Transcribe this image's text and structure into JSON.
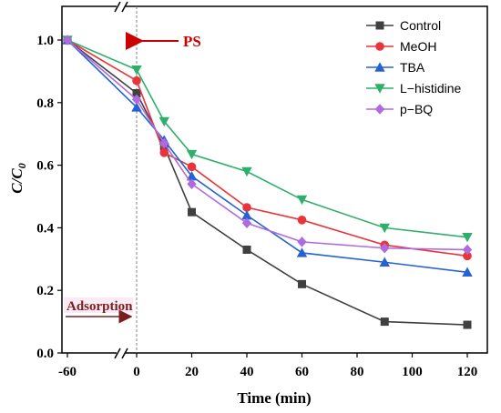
{
  "chart_data": {
    "type": "line",
    "xlabel": "Time (min)",
    "ylabel": "C/C",
    "ylabel_subscript": "0",
    "x_ticks": [
      -60,
      0,
      20,
      40,
      60,
      80,
      100,
      120
    ],
    "y_ticks": [
      0.0,
      0.2,
      0.4,
      0.6,
      0.8,
      1.0
    ],
    "ylim": [
      0.0,
      1.1
    ],
    "axis_break": "between -60 and 0",
    "grid": false,
    "legend_position": "top-right",
    "annotations": [
      {
        "text": "PS",
        "color": "#cc0000",
        "x": 0,
        "y": 1.0
      },
      {
        "text": "Adsorption",
        "color": "#7a1f1f",
        "x": -60,
        "y": 0.12
      }
    ],
    "series": [
      {
        "name": "Control",
        "color": "#404040",
        "marker": "square",
        "x": [
          -60,
          0,
          10,
          20,
          40,
          60,
          90,
          120
        ],
        "y": [
          1.0,
          0.83,
          0.66,
          0.45,
          0.33,
          0.22,
          0.1,
          0.09
        ]
      },
      {
        "name": "MeOH",
        "color": "#e8343a",
        "marker": "circle",
        "x": [
          -60,
          0,
          10,
          20,
          40,
          60,
          90,
          120
        ],
        "y": [
          1.0,
          0.87,
          0.64,
          0.595,
          0.465,
          0.425,
          0.345,
          0.31
        ]
      },
      {
        "name": "TBA",
        "color": "#2563d4",
        "marker": "triangle-up",
        "x": [
          -60,
          0,
          10,
          20,
          40,
          60,
          90,
          120
        ],
        "y": [
          1.0,
          0.785,
          0.68,
          0.565,
          0.44,
          0.32,
          0.29,
          0.258
        ]
      },
      {
        "name": "L−histidine",
        "color": "#2fb06a",
        "marker": "triangle-down",
        "x": [
          -60,
          0,
          10,
          20,
          40,
          60,
          90,
          120
        ],
        "y": [
          1.0,
          0.905,
          0.74,
          0.635,
          0.58,
          0.49,
          0.4,
          0.37
        ]
      },
      {
        "name": "p−BQ",
        "color": "#b06ae0",
        "marker": "diamond",
        "x": [
          -60,
          0,
          10,
          20,
          40,
          60,
          90,
          120
        ],
        "y": [
          1.0,
          0.81,
          0.67,
          0.54,
          0.415,
          0.355,
          0.335,
          0.33
        ]
      }
    ]
  }
}
